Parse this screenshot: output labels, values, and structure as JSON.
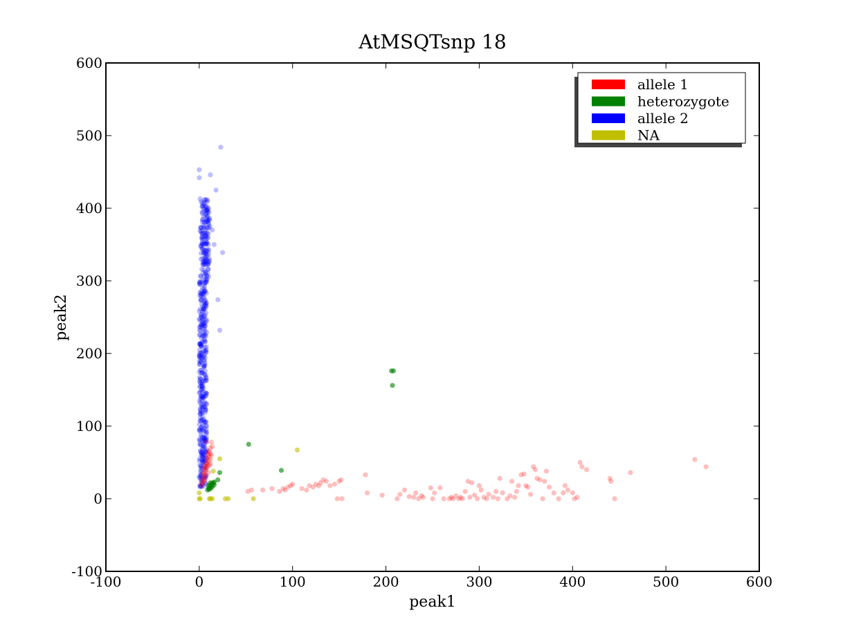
{
  "chart_data": {
    "type": "scatter",
    "title": "AtMSQTsnp 18",
    "xlabel": "peak1",
    "ylabel": "peak2",
    "xlim": [
      -100,
      600
    ],
    "ylim": [
      -100,
      600
    ],
    "xticks": [
      "-100",
      "0",
      "100",
      "200",
      "300",
      "400",
      "500",
      "600"
    ],
    "yticks": [
      "-100",
      "0",
      "100",
      "200",
      "300",
      "400",
      "500",
      "600"
    ],
    "grid": false,
    "legend_position": "top-right",
    "series": [
      {
        "name": "allele 1",
        "color": "#ff0000",
        "opacity": 0.25,
        "points": [
          [
            2,
            20
          ],
          [
            3,
            25
          ],
          [
            4,
            30
          ],
          [
            5,
            35
          ],
          [
            6,
            40
          ],
          [
            7,
            45
          ],
          [
            8,
            50
          ],
          [
            9,
            55
          ],
          [
            10,
            60
          ],
          [
            11,
            65
          ],
          [
            12,
            62
          ],
          [
            4,
            22
          ],
          [
            5,
            28
          ],
          [
            6,
            33
          ],
          [
            7,
            38
          ],
          [
            8,
            42
          ],
          [
            9,
            48
          ],
          [
            10,
            52
          ],
          [
            11,
            58
          ],
          [
            12,
            70
          ],
          [
            13,
            78
          ],
          [
            8,
            78
          ],
          [
            3,
            18
          ],
          [
            5,
            24
          ],
          [
            7,
            32
          ],
          [
            9,
            44
          ],
          [
            10,
            36
          ],
          [
            11,
            46
          ],
          [
            12,
            54
          ],
          [
            6,
            26
          ],
          [
            14,
            72
          ],
          [
            10,
            66
          ],
          [
            9,
            62
          ],
          [
            8,
            56
          ],
          [
            7,
            48
          ],
          [
            6,
            44
          ],
          [
            4,
            36
          ],
          [
            5,
            42
          ],
          [
            13,
            60
          ],
          [
            12,
            48
          ],
          [
            52,
            10
          ],
          [
            56,
            12
          ],
          [
            68,
            12
          ],
          [
            78,
            14
          ],
          [
            86,
            10
          ],
          [
            90,
            14
          ],
          [
            92,
            12
          ],
          [
            95,
            16
          ],
          [
            98,
            18
          ],
          [
            100,
            20
          ],
          [
            110,
            14
          ],
          [
            115,
            12
          ],
          [
            118,
            18
          ],
          [
            122,
            16
          ],
          [
            125,
            20
          ],
          [
            128,
            18
          ],
          [
            130,
            22
          ],
          [
            133,
            26
          ],
          [
            136,
            24
          ],
          [
            140,
            18
          ],
          [
            145,
            20
          ],
          [
            148,
            0
          ],
          [
            150,
            24
          ],
          [
            152,
            26
          ],
          [
            153,
            0
          ],
          [
            178,
            33
          ],
          [
            180,
            8
          ],
          [
            196,
            5
          ],
          [
            212,
            0
          ],
          [
            215,
            6
          ],
          [
            220,
            12
          ],
          [
            225,
            3
          ],
          [
            230,
            2
          ],
          [
            232,
            8
          ],
          [
            235,
            0
          ],
          [
            238,
            4
          ],
          [
            240,
            2
          ],
          [
            248,
            15
          ],
          [
            250,
            0
          ],
          [
            252,
            8
          ],
          [
            258,
            15
          ],
          [
            262,
            0
          ],
          [
            268,
            0
          ],
          [
            270,
            2
          ],
          [
            272,
            0
          ],
          [
            275,
            4
          ],
          [
            278,
            0
          ],
          [
            280,
            2
          ],
          [
            282,
            0
          ],
          [
            285,
            10
          ],
          [
            288,
            24
          ],
          [
            290,
            2
          ],
          [
            292,
            22
          ],
          [
            295,
            5
          ],
          [
            298,
            0
          ],
          [
            300,
            18
          ],
          [
            302,
            12
          ],
          [
            305,
            2
          ],
          [
            308,
            0
          ],
          [
            310,
            6
          ],
          [
            315,
            2
          ],
          [
            318,
            10
          ],
          [
            320,
            0
          ],
          [
            322,
            28
          ],
          [
            325,
            8
          ],
          [
            330,
            0
          ],
          [
            333,
            4
          ],
          [
            335,
            24
          ],
          [
            338,
            2
          ],
          [
            340,
            10
          ],
          [
            342,
            18
          ],
          [
            345,
            33
          ],
          [
            348,
            34
          ],
          [
            350,
            18
          ],
          [
            352,
            16
          ],
          [
            355,
            6
          ],
          [
            358,
            44
          ],
          [
            360,
            40
          ],
          [
            362,
            28
          ],
          [
            365,
            26
          ],
          [
            368,
            0
          ],
          [
            370,
            24
          ],
          [
            372,
            38
          ],
          [
            375,
            16
          ],
          [
            380,
            8
          ],
          [
            385,
            0
          ],
          [
            390,
            8
          ],
          [
            392,
            18
          ],
          [
            395,
            12
          ],
          [
            400,
            8
          ],
          [
            402,
            0
          ],
          [
            405,
            2
          ],
          [
            408,
            50
          ],
          [
            410,
            44
          ],
          [
            415,
            40
          ],
          [
            440,
            28
          ],
          [
            441,
            24
          ],
          [
            445,
            0
          ],
          [
            462,
            36
          ],
          [
            531,
            54
          ],
          [
            543,
            44
          ]
        ]
      },
      {
        "name": "heterozygote",
        "color": "#008000",
        "opacity": 0.6,
        "points": [
          [
            9,
            12
          ],
          [
            10,
            14
          ],
          [
            11,
            16
          ],
          [
            12,
            18
          ],
          [
            13,
            20
          ],
          [
            14,
            21
          ],
          [
            15,
            22
          ],
          [
            16,
            19
          ],
          [
            12,
            22
          ],
          [
            14,
            17
          ],
          [
            11,
            13
          ],
          [
            13,
            15
          ],
          [
            16,
            23
          ],
          [
            10,
            18
          ],
          [
            20,
            26
          ],
          [
            22,
            36
          ],
          [
            53,
            75
          ],
          [
            88,
            39
          ],
          [
            206,
            176
          ],
          [
            208,
            176
          ],
          [
            207,
            156
          ]
        ]
      },
      {
        "name": "allele 2",
        "color": "#0000ff",
        "opacity": 0.25,
        "points": []
      },
      {
        "name": "NA",
        "color": "#bfbf00",
        "opacity": 0.6,
        "points": [
          [
            0,
            0
          ],
          [
            0,
            8
          ],
          [
            1,
            0
          ],
          [
            11,
            0
          ],
          [
            12,
            0
          ],
          [
            14,
            0
          ],
          [
            28,
            0
          ],
          [
            31,
            0
          ],
          [
            58,
            0
          ],
          [
            22,
            55
          ],
          [
            105,
            67
          ],
          [
            15,
            38
          ]
        ]
      }
    ]
  }
}
